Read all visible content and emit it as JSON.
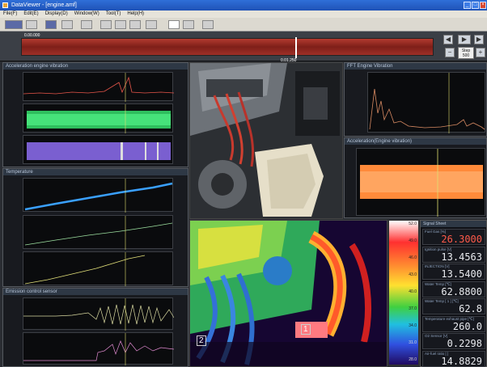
{
  "window": {
    "title": "DataViewer - [engine.amf]"
  },
  "menu": {
    "items": [
      "File(F)",
      "Edit(E)",
      "Display(D)",
      "Window(W)",
      "Tool(T)",
      "Help(H)"
    ]
  },
  "playbar": {
    "step_label": "Step",
    "step_value": "500",
    "time_start": "0.00.000",
    "time_cursor": "0.01.250"
  },
  "panels": {
    "acceleration": {
      "title": "Acceleration engine vibration"
    },
    "temperature": {
      "title": "Temperature"
    },
    "emission": {
      "title": "Emission control sensor"
    },
    "fft": {
      "title": "FFT Engine Vibration"
    },
    "accel_right": {
      "title": "Acceleration(Engine vibration)"
    },
    "signal_sheet": {
      "title": "Signal Sheet"
    }
  },
  "scale": {
    "ticks": [
      "52.0",
      "49.0",
      "46.0",
      "43.0",
      "40.0",
      "37.0",
      "34.0",
      "31.0",
      "28.0"
    ]
  },
  "thermal": {
    "markers": [
      "1",
      "2"
    ]
  },
  "signals": [
    {
      "label": "Fuel Gas [%]",
      "value": "26.3000",
      "red": true
    },
    {
      "label": "Ignition pulse [V]",
      "value": "13.4563",
      "red": false
    },
    {
      "label": "INJECTION [V]",
      "value": "13.5400",
      "red": false
    },
    {
      "label": "Water Temp [℃]",
      "value": "62.8800",
      "red": false
    },
    {
      "label": "Water Temp [ 1 ] [℃]",
      "value": "62.8",
      "red": false
    },
    {
      "label": "Temperature exhaust pipe [℃]",
      "value": "260.0",
      "red": false
    },
    {
      "label": "O2 Sensor [V]",
      "value": "0.2298",
      "red": false
    },
    {
      "label": "Air-fuel ratio [ ]",
      "value": "14.8829",
      "red": false
    }
  ],
  "colors": {
    "accent": "#2f6fd8",
    "engine_red": "#e8564a",
    "green": "#39d26b",
    "purple": "#8a6ee0",
    "orange": "#ff8a3a"
  }
}
